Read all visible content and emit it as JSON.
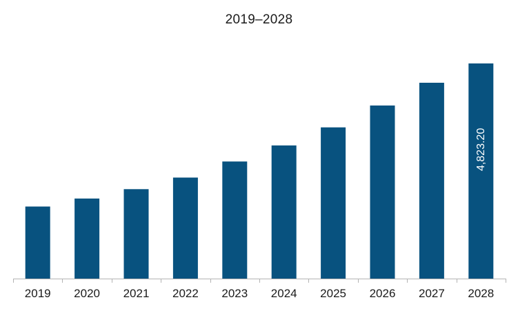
{
  "chart_data": {
    "type": "bar",
    "title": "2019–2028",
    "xlabel": "",
    "ylabel": "",
    "categories": [
      "2019",
      "2020",
      "2021",
      "2022",
      "2023",
      "2024",
      "2025",
      "2026",
      "2027",
      "2028"
    ],
    "values": [
      1615,
      1795,
      2005,
      2265,
      2625,
      2985,
      3390,
      3880,
      4390,
      4823.2
    ],
    "data_labels": [
      {
        "category": "2028",
        "text": "4,823.20"
      }
    ],
    "ylim": [
      0,
      5000
    ],
    "grid": false,
    "legend": "none",
    "colors": {
      "bar": "#08527f",
      "axis": "#b3b3b3",
      "data_label": "#ffffff"
    }
  }
}
